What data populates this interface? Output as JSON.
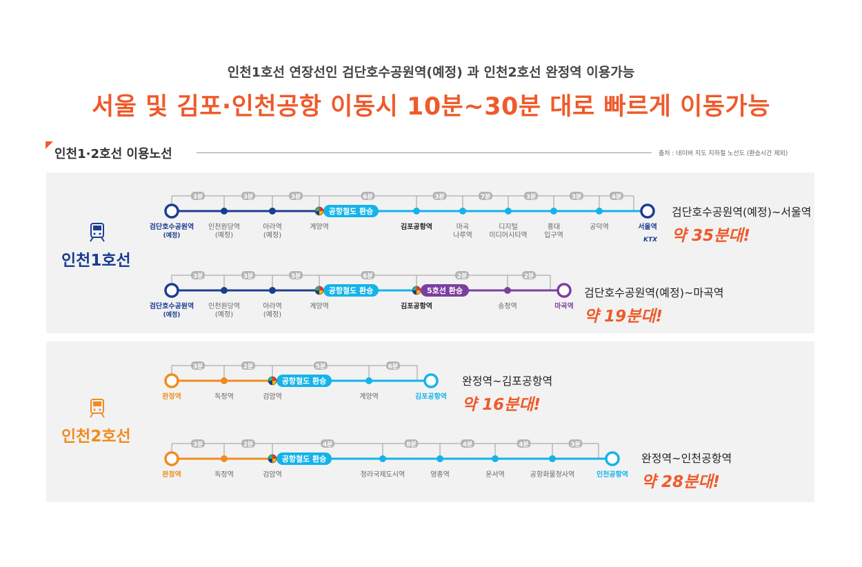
{
  "header": {
    "subtitle": "인천1호선 연장선인 검단호수공원역(예정) 과 인천2호선 완정역 이용가능",
    "headline": "서울 및 김포·인천공항 이동시 10분~30분 대로 빠르게 이동가능"
  },
  "section": {
    "title": "인천1·2호선 이용노선",
    "source": "출처 : 네이버 지도 지하철 노선도 (환승시간 제외)"
  },
  "colors": {
    "accent": "#ef5a2a",
    "line1": "#1a3d8f",
    "airport": "#14b3e8",
    "line5": "#7b3f9e",
    "line2": "#f08c1d",
    "bracket": "#9a9a9a",
    "pill": "#b4b4b4"
  },
  "panels": [
    {
      "line_name": "인천1호선",
      "icon": "train-icon",
      "routes": [
        {
          "summary": {
            "route": "검단호수공원역(예정)~서울역",
            "time": "약 35분대!"
          },
          "stations": [
            {
              "label": "검단호수공원역\n(예정)",
              "type": "terminal",
              "color": "line1",
              "bold": true,
              "label_color": "line1"
            },
            {
              "label": "인천원당역\n(예정)",
              "type": "stop",
              "color": "line1"
            },
            {
              "label": "아라역\n(예정)",
              "type": "stop",
              "color": "line1"
            },
            {
              "label": "계양역",
              "type": "transfer"
            },
            {
              "label": "김포공항역",
              "type": "stop",
              "color": "airport",
              "bold": true
            },
            {
              "label": "마곡\n나루역",
              "type": "stop",
              "color": "airport"
            },
            {
              "label": "디지털\n미디어시티역",
              "type": "stop",
              "color": "airport"
            },
            {
              "label": "홍대\n입구역",
              "type": "stop",
              "color": "airport"
            },
            {
              "label": "공덕역",
              "type": "stop",
              "color": "airport"
            },
            {
              "label": "서울역",
              "type": "terminal",
              "color": "line1",
              "bold": true,
              "label_color": "line1",
              "sub": "KTX"
            }
          ],
          "segments": [
            "line1",
            "line1",
            "line1",
            "airport",
            "airport",
            "airport",
            "airport",
            "airport",
            "airport"
          ],
          "times": [
            "3분",
            "3분",
            "3분",
            "6분",
            "3분",
            "7분",
            "3분",
            "3분",
            "4분"
          ],
          "transfers": [
            {
              "after": 3,
              "label": "공항철도 환승",
              "color": "airport"
            }
          ]
        },
        {
          "summary": {
            "route": "검단호수공원역(예정)~마곡역",
            "time": "약 19분대!"
          },
          "stations": [
            {
              "label": "검단호수공원역\n(예정)",
              "type": "terminal",
              "color": "line1",
              "bold": true,
              "label_color": "line1"
            },
            {
              "label": "인천원당역\n(예정)",
              "type": "stop",
              "color": "line1"
            },
            {
              "label": "아라역\n(예정)",
              "type": "stop",
              "color": "line1"
            },
            {
              "label": "계양역",
              "type": "transfer"
            },
            {
              "label": "김포공항역",
              "type": "transfer",
              "bold": true
            },
            {
              "label": "송정역",
              "type": "stop",
              "color": "line5"
            },
            {
              "label": "마곡역",
              "type": "terminal",
              "color": "line5",
              "bold": true,
              "label_color": "line5"
            }
          ],
          "segments": [
            "line1",
            "line1",
            "line1",
            "airport",
            "line5",
            "line5"
          ],
          "times": [
            "3분",
            "3분",
            "3분",
            "6분",
            "2분",
            "2분"
          ],
          "transfers": [
            {
              "after": 3,
              "label": "공항철도 환승",
              "color": "airport"
            },
            {
              "after": 4,
              "label": "5호선 환승",
              "color": "line5"
            }
          ]
        }
      ]
    },
    {
      "line_name": "인천2호선",
      "icon": "train-icon",
      "routes": [
        {
          "summary": {
            "route": "완정역~김포공항역",
            "time": "약 16분대!"
          },
          "stations": [
            {
              "label": "완정역",
              "type": "terminal",
              "color": "line2",
              "bold": true,
              "label_color": "line2"
            },
            {
              "label": "독정역",
              "type": "stop",
              "color": "line2"
            },
            {
              "label": "검암역",
              "type": "transfer"
            },
            {
              "label": "계양역",
              "type": "stop",
              "color": "airport"
            },
            {
              "label": "김포공항역",
              "type": "terminal",
              "color": "airport",
              "bold": true,
              "label_color": "airport"
            }
          ],
          "segments": [
            "line2",
            "line2",
            "airport",
            "airport"
          ],
          "times": [
            "3분",
            "2분",
            "5분",
            "6분"
          ],
          "transfers": [
            {
              "after": 2,
              "label": "공항철도 환승",
              "color": "airport"
            }
          ]
        },
        {
          "summary": {
            "route": "완정역~인천공항역",
            "time": "약 28분대!"
          },
          "stations": [
            {
              "label": "완정역",
              "type": "terminal",
              "color": "line2",
              "bold": true,
              "label_color": "line2"
            },
            {
              "label": "독정역",
              "type": "stop",
              "color": "line2"
            },
            {
              "label": "검암역",
              "type": "transfer"
            },
            {
              "label": "청라국제도시역",
              "type": "stop",
              "color": "airport"
            },
            {
              "label": "영종역",
              "type": "stop",
              "color": "airport"
            },
            {
              "label": "운서역",
              "type": "stop",
              "color": "airport"
            },
            {
              "label": "공항화물청사역",
              "type": "stop",
              "color": "airport"
            },
            {
              "label": "인천공항역",
              "type": "terminal",
              "color": "airport",
              "bold": true,
              "label_color": "airport"
            }
          ],
          "segments": [
            "line2",
            "line2",
            "airport",
            "airport",
            "airport",
            "airport",
            "airport"
          ],
          "times": [
            "3분",
            "2분",
            "4분",
            "8분",
            "4분",
            "4분",
            "3분"
          ],
          "transfers": [
            {
              "after": 2,
              "label": "공항철도 환승",
              "color": "airport"
            }
          ]
        }
      ]
    }
  ]
}
